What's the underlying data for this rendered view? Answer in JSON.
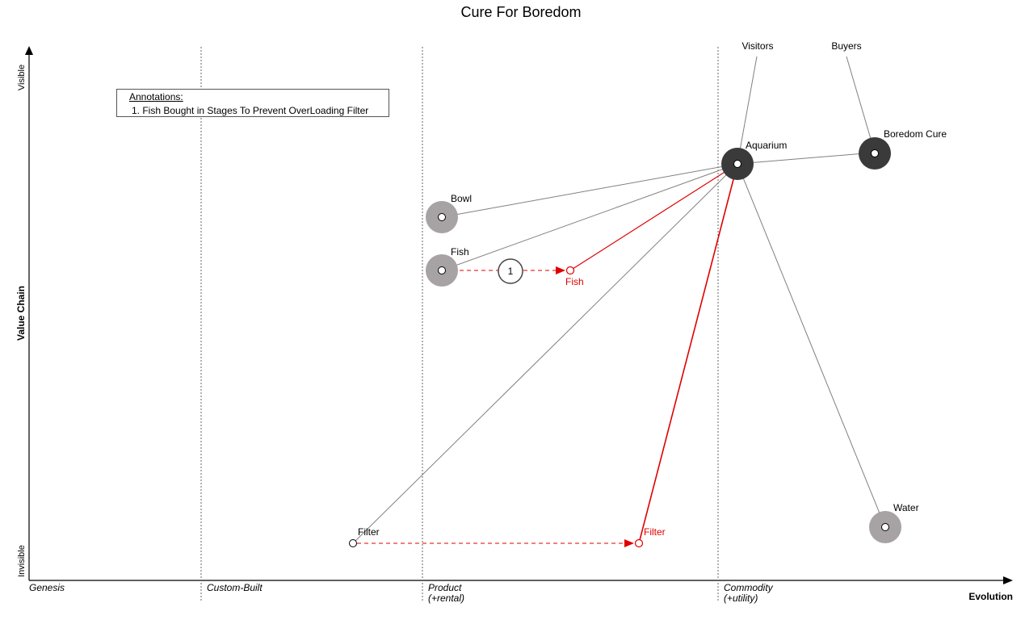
{
  "title": "Cure For Boredom",
  "axes": {
    "y_title": "Value Chain",
    "y_top": "Visible",
    "y_bottom": "Invisible",
    "x_title": "Evolution"
  },
  "stages": [
    {
      "line1": "Genesis",
      "line2": ""
    },
    {
      "line1": "Custom-Built",
      "line2": ""
    },
    {
      "line1": "Product",
      "line2": "(+rental)"
    },
    {
      "line1": "Commodity",
      "line2": "(+utility)"
    }
  ],
  "annotations": {
    "heading": "Annotations:",
    "items": [
      "1. Fish Bought in Stages To Prevent OverLoading Filter"
    ],
    "marker": "1"
  },
  "anchors": {
    "visitors": "Visitors",
    "buyers": "Buyers"
  },
  "components": {
    "aquarium": "Aquarium",
    "boredom_cure": "Boredom Cure",
    "bowl": "Bowl",
    "fish": "Fish",
    "filter": "Filter",
    "water": "Water"
  },
  "evolved": {
    "fish": "Fish",
    "filter": "Filter"
  },
  "colors": {
    "link": "#808080",
    "evolve": "#e00000",
    "inertia_dark": "#3a3a3a",
    "inertia_light": "#a7a3a5"
  }
}
